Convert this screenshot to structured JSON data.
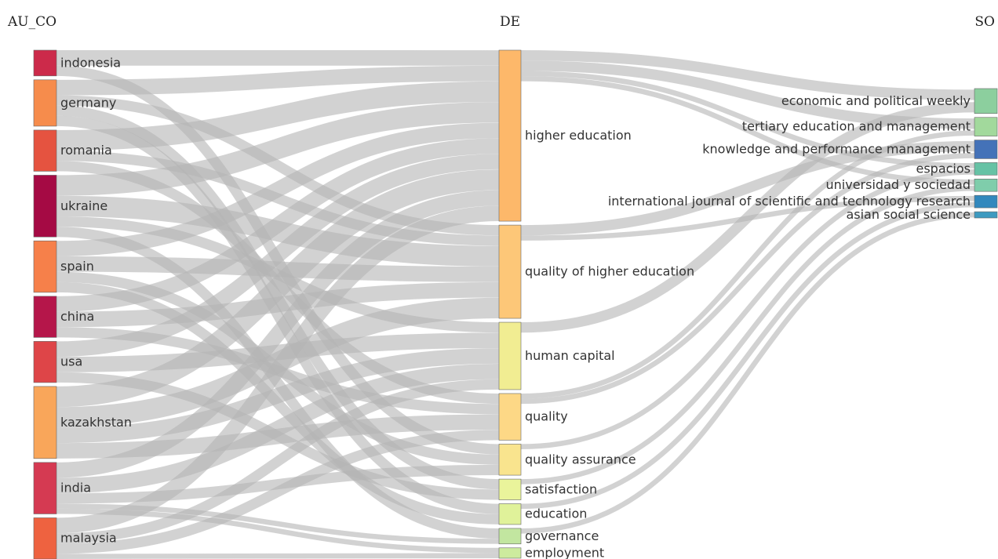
{
  "columns": [
    {
      "id": "au_co",
      "title": "AU_CO"
    },
    {
      "id": "de",
      "title": "DE"
    },
    {
      "id": "so",
      "title": "SO"
    }
  ],
  "nodes": {
    "au_co": [
      {
        "id": "indonesia",
        "label": "indonesia",
        "color": "#cc2a4a"
      },
      {
        "id": "germany",
        "label": "germany",
        "color": "#f68c4c"
      },
      {
        "id": "romania",
        "label": "romania",
        "color": "#e55340"
      },
      {
        "id": "ukraine",
        "label": "ukraine",
        "color": "#a50a44"
      },
      {
        "id": "spain",
        "label": "spain",
        "color": "#f6804a"
      },
      {
        "id": "china",
        "label": "china",
        "color": "#b5164a"
      },
      {
        "id": "usa",
        "label": "usa",
        "color": "#de4548"
      },
      {
        "id": "kazakhstan",
        "label": "kazakhstan",
        "color": "#f9a65a"
      },
      {
        "id": "india",
        "label": "india",
        "color": "#d53a52"
      },
      {
        "id": "malaysia",
        "label": "malaysia",
        "color": "#ee6240"
      }
    ],
    "de": [
      {
        "id": "higher_education",
        "label": "higher education",
        "color": "#fdb86a"
      },
      {
        "id": "quality_of_higher_education",
        "label": "quality of higher education",
        "color": "#fdc778"
      },
      {
        "id": "human_capital",
        "label": "human capital",
        "color": "#f1ed92"
      },
      {
        "id": "quality",
        "label": "quality",
        "color": "#fdd886"
      },
      {
        "id": "quality_assurance",
        "label": "quality assurance",
        "color": "#f9e48e"
      },
      {
        "id": "satisfaction",
        "label": "satisfaction",
        "color": "#eaf49b"
      },
      {
        "id": "education",
        "label": "education",
        "color": "#e0f29a"
      },
      {
        "id": "governance",
        "label": "governance",
        "color": "#c2e6a0"
      },
      {
        "id": "employment",
        "label": "employment",
        "color": "#cdeb9e"
      }
    ],
    "so": [
      {
        "id": "epw",
        "label": "economic and political weekly",
        "color": "#8ccf9e"
      },
      {
        "id": "tem",
        "label": "tertiary education and management",
        "color": "#a2d99c"
      },
      {
        "id": "kpm",
        "label": "knowledge and performance management",
        "color": "#4472b8"
      },
      {
        "id": "espacios",
        "label": "espacios",
        "color": "#66c2a5"
      },
      {
        "id": "uys",
        "label": "universidad y sociedad",
        "color": "#7fcdab"
      },
      {
        "id": "ijstr",
        "label": "international journal of scientific and technology research",
        "color": "#3288bd"
      },
      {
        "id": "ass",
        "label": "asian social science",
        "color": "#3d9ac0"
      }
    ]
  },
  "links": [
    {
      "source": "indonesia",
      "target": "higher_education",
      "value": 1.5
    },
    {
      "source": "indonesia",
      "target": "quality_assurance",
      "value": 1
    },
    {
      "source": "germany",
      "target": "higher_education",
      "value": 1.5
    },
    {
      "source": "germany",
      "target": "quality_of_higher_education",
      "value": 1
    },
    {
      "source": "germany",
      "target": "satisfaction",
      "value": 1
    },
    {
      "source": "germany",
      "target": "education",
      "value": 1
    },
    {
      "source": "romania",
      "target": "higher_education",
      "value": 2
    },
    {
      "source": "romania",
      "target": "quality_of_higher_education",
      "value": 1
    },
    {
      "source": "romania",
      "target": "quality",
      "value": 1
    },
    {
      "source": "ukraine",
      "target": "higher_education",
      "value": 2
    },
    {
      "source": "ukraine",
      "target": "quality_of_higher_education",
      "value": 2
    },
    {
      "source": "ukraine",
      "target": "human_capital",
      "value": 1
    },
    {
      "source": "ukraine",
      "target": "governance",
      "value": 1
    },
    {
      "source": "spain",
      "target": "higher_education",
      "value": 1.5
    },
    {
      "source": "spain",
      "target": "quality_of_higher_education",
      "value": 1.5
    },
    {
      "source": "spain",
      "target": "quality_assurance",
      "value": 1
    },
    {
      "source": "spain",
      "target": "education",
      "value": 1
    },
    {
      "source": "china",
      "target": "higher_education",
      "value": 1.5
    },
    {
      "source": "china",
      "target": "quality_of_higher_education",
      "value": 1.5
    },
    {
      "source": "china",
      "target": "quality",
      "value": 1
    },
    {
      "source": "usa",
      "target": "higher_education",
      "value": 1.5
    },
    {
      "source": "usa",
      "target": "human_capital",
      "value": 1.5
    },
    {
      "source": "usa",
      "target": "satisfaction",
      "value": 1
    },
    {
      "source": "kazakhstan",
      "target": "higher_education",
      "value": 2
    },
    {
      "source": "kazakhstan",
      "target": "quality_of_higher_education",
      "value": 2
    },
    {
      "source": "kazakhstan",
      "target": "human_capital",
      "value": 1.5
    },
    {
      "source": "kazakhstan",
      "target": "quality",
      "value": 1.5
    },
    {
      "source": "india",
      "target": "higher_education",
      "value": 1.5
    },
    {
      "source": "india",
      "target": "human_capital",
      "value": 1.5
    },
    {
      "source": "india",
      "target": "quality_assurance",
      "value": 1
    },
    {
      "source": "india",
      "target": "governance",
      "value": 0.5
    },
    {
      "source": "india",
      "target": "employment",
      "value": 0.5
    },
    {
      "source": "malaysia",
      "target": "higher_education",
      "value": 1.5
    },
    {
      "source": "malaysia",
      "target": "human_capital",
      "value": 1
    },
    {
      "source": "malaysia",
      "target": "quality",
      "value": 1
    },
    {
      "source": "malaysia",
      "target": "employment",
      "value": 0.5
    },
    {
      "source": "higher_education",
      "target": "epw",
      "value": 1
    },
    {
      "source": "higher_education",
      "target": "tem",
      "value": 1
    },
    {
      "source": "higher_education",
      "target": "espacios",
      "value": 0.5
    },
    {
      "source": "higher_education",
      "target": "uys",
      "value": 0.5
    },
    {
      "source": "quality_of_higher_education",
      "target": "kpm",
      "value": 1
    },
    {
      "source": "quality_of_higher_education",
      "target": "ijstr",
      "value": 0.5
    },
    {
      "source": "human_capital",
      "target": "epw",
      "value": 1
    },
    {
      "source": "quality",
      "target": "tem",
      "value": 0.5
    },
    {
      "source": "quality",
      "target": "kpm",
      "value": 0.5
    },
    {
      "source": "quality_assurance",
      "target": "espacios",
      "value": 0.5
    },
    {
      "source": "satisfaction",
      "target": "uys",
      "value": 0.5
    },
    {
      "source": "education",
      "target": "ijstr",
      "value": 0.5
    },
    {
      "source": "governance",
      "target": "ass",
      "value": 0.5
    }
  ]
}
